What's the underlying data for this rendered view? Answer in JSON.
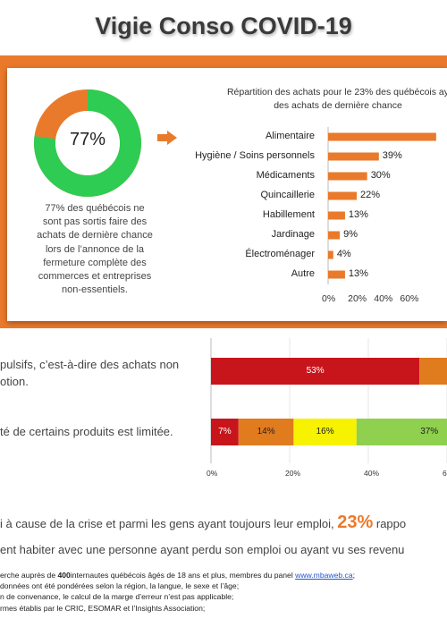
{
  "title": "Vigie Conso COVID-19",
  "donut": {
    "value_label": "77%",
    "percent": 77,
    "color_main": "#2ecc52",
    "color_rest": "#ea7a2b"
  },
  "left_text": [
    "77% des québécois ne",
    "sont pas sortis faire des",
    "achats de dernière chance",
    "lors de l’annonce de la",
    "fermeture complète des",
    "commerces et entreprises",
    "non-essentiels."
  ],
  "chart_data": [
    {
      "type": "bar",
      "orientation": "horizontal",
      "title_lines": [
        "Répartition des achats pour le 23% des québécois ay",
        "des achats de dernière chance"
      ],
      "categories": [
        "Alimentaire",
        "Hygiène / Soins personnels",
        "Médicaments",
        "Quincaillerie",
        "Habillement",
        "Jardinage",
        "Électroménager",
        "Autre"
      ],
      "values": [
        83,
        39,
        30,
        22,
        13,
        9,
        4,
        13
      ],
      "value_labels": [
        "",
        "39%",
        "30%",
        "22%",
        "13%",
        "9%",
        "4%",
        "13%"
      ],
      "xticks": [
        "0%",
        "20%",
        "40%",
        "60%"
      ],
      "xlim": [
        0,
        80
      ],
      "color": "#ea7a2b"
    },
    {
      "type": "bar",
      "orientation": "horizontal-stacked",
      "rows": [
        {
          "segments": [
            {
              "value": 53,
              "label": "53%",
              "color": "#c8151b"
            },
            {
              "value": 47,
              "label": "",
              "color": "#e07b1e"
            }
          ]
        },
        {
          "segments": [
            {
              "value": 7,
              "label": "7%",
              "color": "#c8151b"
            },
            {
              "value": 14,
              "label": "14%",
              "color": "#e07b1e"
            },
            {
              "value": 16,
              "label": "16%",
              "color": "#f6f200"
            },
            {
              "value": 37,
              "label": "37%",
              "color": "#8fd04e"
            },
            {
              "value": 26,
              "label": "",
              "color": "#8fd04e"
            }
          ]
        }
      ],
      "xticks": [
        "0%",
        "20%",
        "40%",
        "6"
      ],
      "xlim": [
        0,
        60
      ]
    }
  ],
  "section2": {
    "line1a": "pulsifs, c’est-à-dire des achats non",
    "line1b": "otion.",
    "line2": "té de certains produits est limitée."
  },
  "section3": {
    "line1_pre": "i à cause de la crise et parmi les gens ayant toujours leur emploi,",
    "line1_big": "23%",
    "line1_post": "rappo",
    "line2": "ent habiter avec une personne ayant perdu son emploi ou ayant vu ses revenu"
  },
  "footer": {
    "line1_pre": "erche auprès de",
    "line1_bold": "400",
    "line1_post": "internautes québécois âgés de 18 ans et plus, membres du panel",
    "link": "www.mbaweb.ca",
    "line1_end": ";",
    "line2": "données ont été pondérées selon la région, la langue, le sexe et l’âge;",
    "line3": "n de convenance, le calcul de la marge d’erreur n’est pas applicable;",
    "line4": "rmes établis par le CRIC, ESOMAR et l’Insights Association;"
  }
}
